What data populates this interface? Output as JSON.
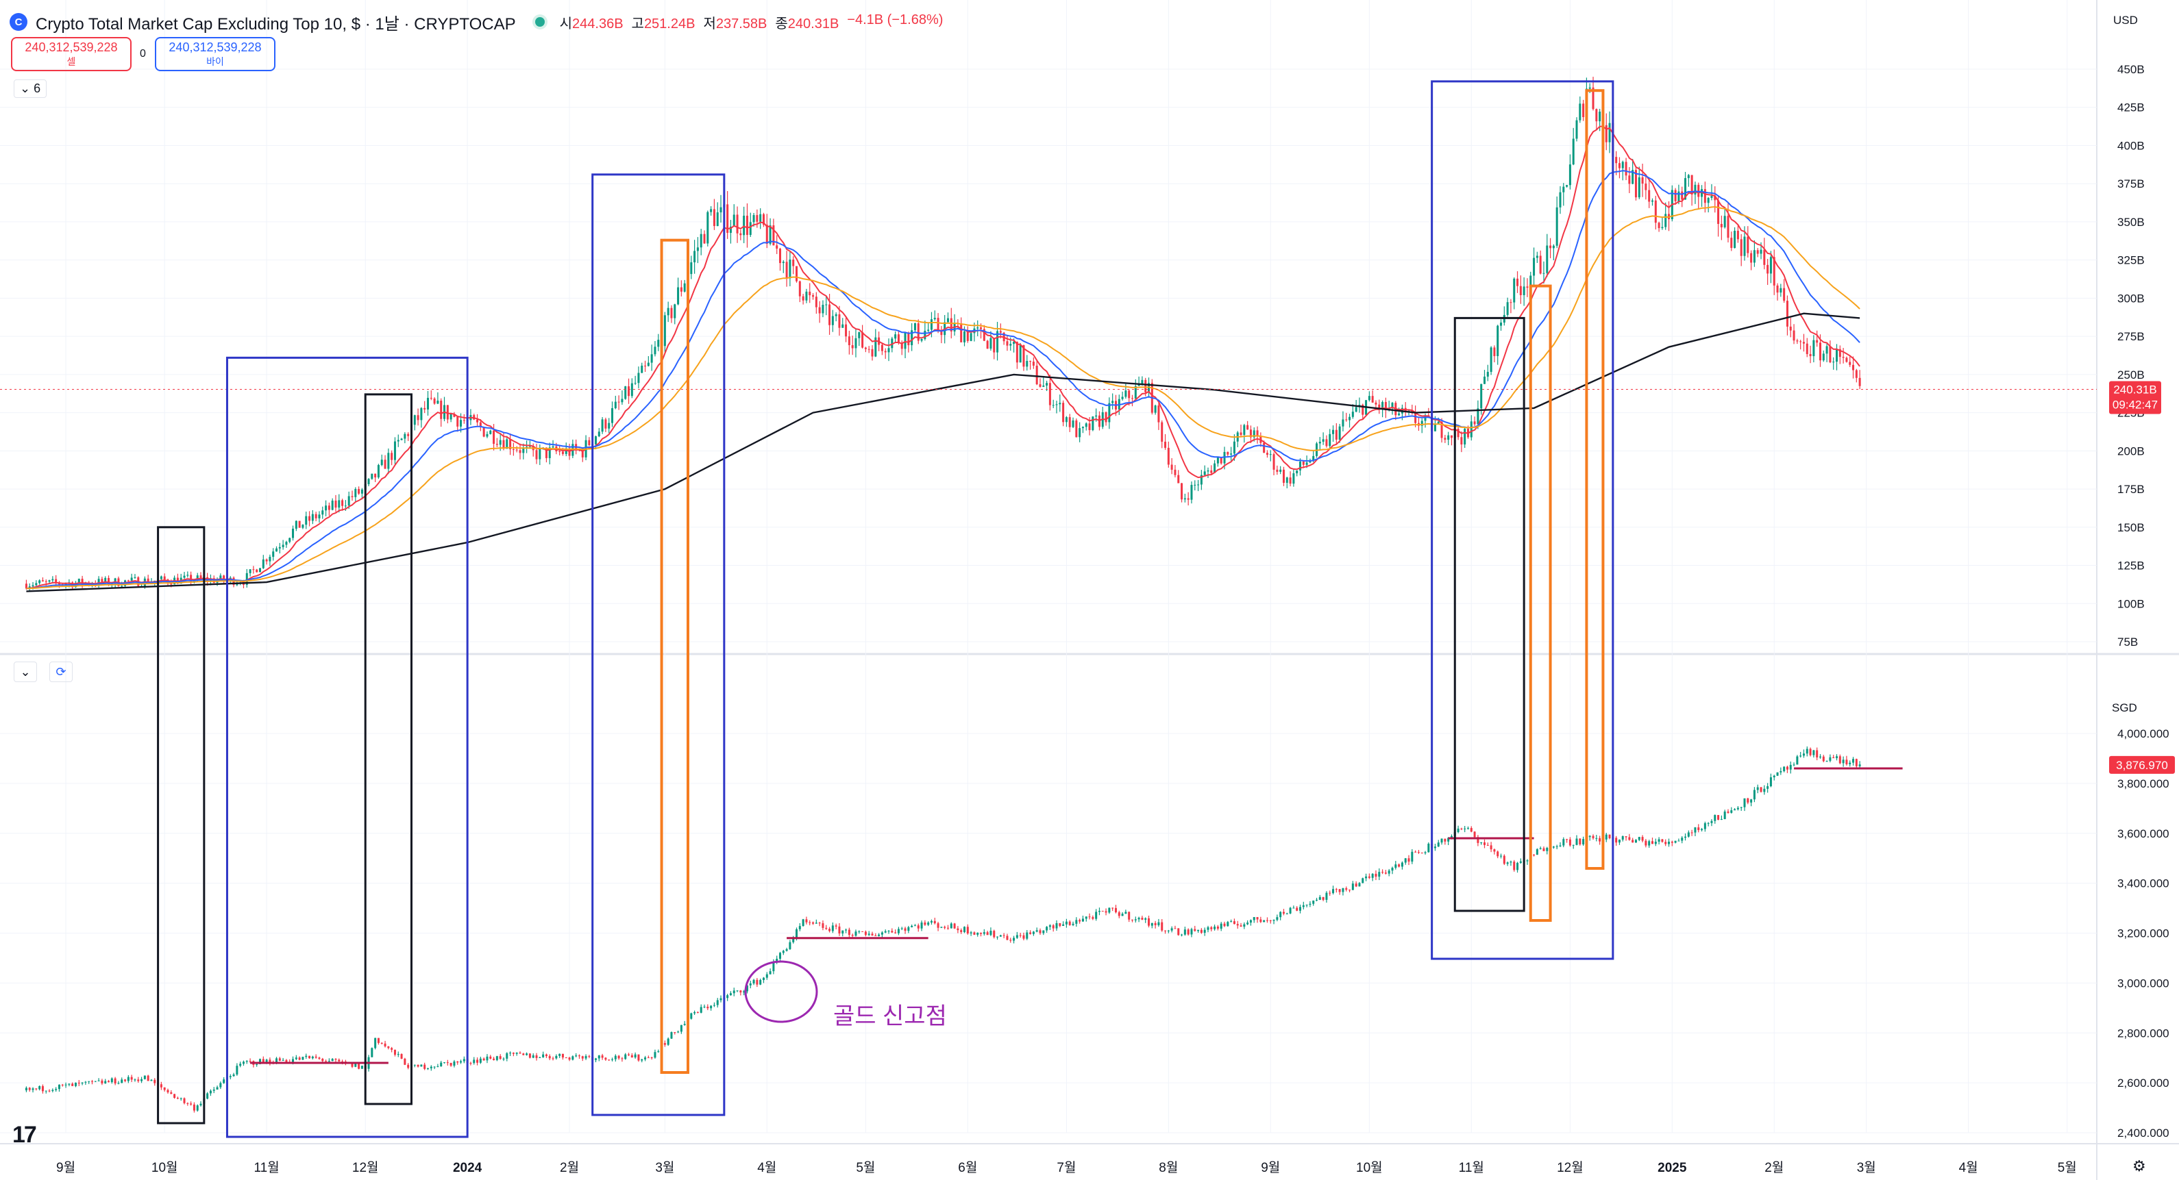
{
  "header": {
    "logo_glyph": "C",
    "title": "Crypto Total Market Cap Excluding Top 10, $ · 1날 · CRYPTOCAP",
    "open_label": "시",
    "open_value": "244.36B",
    "high_label": "고",
    "high_value": "251.24B",
    "low_label": "저",
    "low_value": "237.58B",
    "close_label": "종",
    "close_value": "240.31B",
    "change_value": "−4.1B (−1.68%)",
    "status_color": "#22ab94"
  },
  "trade": {
    "sell_price": "240,312,539,228",
    "sell_label": "셀",
    "spread": "0",
    "buy_price": "240,312,539,228",
    "buy_label": "바이"
  },
  "indicator_toggle": "6",
  "pane2_collapse": "⌄",
  "pane2_refresh": "⟳",
  "currency_top": "USD",
  "currency_bottom": "SGD",
  "annotation": "골드 신고점",
  "tv_logo": "17",
  "settings_glyph": "⚙",
  "chart_data": [
    {
      "type": "candlestick",
      "pane": "top",
      "currency": "USD",
      "y_axis_labels": [
        "450B",
        "425B",
        "400B",
        "375B",
        "350B",
        "325B",
        "300B",
        "275B",
        "250B",
        "225B",
        "200B",
        "175B",
        "150B",
        "125B",
        "100B",
        "75B"
      ],
      "ylim": [
        75,
        450
      ],
      "last_price_label": "240.31B",
      "countdown_label": "09:42:47",
      "last_price": 240.31,
      "series": [
        {
          "name": "",
          "color": "#f23645",
          "role": "ma_short"
        },
        {
          "name": "",
          "color": "#2962ff",
          "role": "ma_mid"
        },
        {
          "name": "",
          "color": "#f7a21b",
          "role": "ma_long"
        },
        {
          "name": "",
          "color": "#131722",
          "role": "ma_200"
        }
      ],
      "key_points": [
        {
          "date": "2023-08-20",
          "value": 113
        },
        {
          "date": "2023-09-15",
          "value": 114
        },
        {
          "date": "2023-10-10",
          "value": 116
        },
        {
          "date": "2023-10-25",
          "value": 115
        },
        {
          "date": "2023-11-10",
          "value": 150
        },
        {
          "date": "2023-12-01",
          "value": 175
        },
        {
          "date": "2023-12-20",
          "value": 230
        },
        {
          "date": "2024-01-05",
          "value": 215
        },
        {
          "date": "2024-01-20",
          "value": 198
        },
        {
          "date": "2024-02-05",
          "value": 200
        },
        {
          "date": "2024-02-25",
          "value": 255
        },
        {
          "date": "2024-03-15",
          "value": 355
        },
        {
          "date": "2024-03-31",
          "value": 345
        },
        {
          "date": "2024-04-15",
          "value": 295
        },
        {
          "date": "2024-05-01",
          "value": 268
        },
        {
          "date": "2024-05-25",
          "value": 282
        },
        {
          "date": "2024-06-15",
          "value": 268
        },
        {
          "date": "2024-07-05",
          "value": 210
        },
        {
          "date": "2024-07-25",
          "value": 245
        },
        {
          "date": "2024-08-05",
          "value": 168
        },
        {
          "date": "2024-08-25",
          "value": 215
        },
        {
          "date": "2024-09-06",
          "value": 180
        },
        {
          "date": "2024-09-30",
          "value": 232
        },
        {
          "date": "2024-10-15",
          "value": 220
        },
        {
          "date": "2024-10-31",
          "value": 208
        },
        {
          "date": "2024-11-12",
          "value": 300
        },
        {
          "date": "2024-11-25",
          "value": 330
        },
        {
          "date": "2024-12-06",
          "value": 440
        },
        {
          "date": "2024-12-15",
          "value": 395
        },
        {
          "date": "2024-12-28",
          "value": 350
        },
        {
          "date": "2025-01-06",
          "value": 375
        },
        {
          "date": "2025-01-20",
          "value": 340
        },
        {
          "date": "2025-01-31",
          "value": 320
        },
        {
          "date": "2025-02-07",
          "value": 270
        },
        {
          "date": "2025-02-20",
          "value": 262
        },
        {
          "date": "2025-02-27",
          "value": 240.31
        }
      ],
      "ma200_points": [
        {
          "date": "2023-08-20",
          "value": 108
        },
        {
          "date": "2023-11-01",
          "value": 114
        },
        {
          "date": "2024-01-01",
          "value": 140
        },
        {
          "date": "2024-03-01",
          "value": 175
        },
        {
          "date": "2024-04-15",
          "value": 225
        },
        {
          "date": "2024-06-15",
          "value": 250
        },
        {
          "date": "2024-08-15",
          "value": 240
        },
        {
          "date": "2024-10-15",
          "value": 225
        },
        {
          "date": "2024-11-20",
          "value": 228
        },
        {
          "date": "2024-12-31",
          "value": 268
        },
        {
          "date": "2025-02-10",
          "value": 290
        },
        {
          "date": "2025-02-27",
          "value": 287
        }
      ]
    },
    {
      "type": "candlestick",
      "pane": "bottom",
      "currency": "SGD",
      "y_axis_labels": [
        "4,000.000",
        "3,800.000",
        "3,600.000",
        "3,400.000",
        "3,200.000",
        "3,000.000",
        "2,800.000",
        "2,600.000",
        "2,400.000"
      ],
      "ylim": [
        2400,
        4000
      ],
      "last_price_label": "3,876.970",
      "last_price": 3876.97,
      "key_points": [
        {
          "date": "2023-08-20",
          "value": 2570
        },
        {
          "date": "2023-09-25",
          "value": 2620
        },
        {
          "date": "2023-10-10",
          "value": 2500
        },
        {
          "date": "2023-10-25",
          "value": 2680
        },
        {
          "date": "2023-11-15",
          "value": 2700
        },
        {
          "date": "2023-12-01",
          "value": 2660
        },
        {
          "date": "2023-12-04",
          "value": 2780
        },
        {
          "date": "2023-12-15",
          "value": 2660
        },
        {
          "date": "2024-01-15",
          "value": 2710
        },
        {
          "date": "2024-02-25",
          "value": 2700
        },
        {
          "date": "2024-03-10",
          "value": 2880
        },
        {
          "date": "2024-03-31",
          "value": 3020
        },
        {
          "date": "2024-04-12",
          "value": 3240
        },
        {
          "date": "2024-05-01",
          "value": 3190
        },
        {
          "date": "2024-05-20",
          "value": 3240
        },
        {
          "date": "2024-06-15",
          "value": 3180
        },
        {
          "date": "2024-07-15",
          "value": 3290
        },
        {
          "date": "2024-08-05",
          "value": 3200
        },
        {
          "date": "2024-09-01",
          "value": 3260
        },
        {
          "date": "2024-10-01",
          "value": 3420
        },
        {
          "date": "2024-10-30",
          "value": 3620
        },
        {
          "date": "2024-11-14",
          "value": 3460
        },
        {
          "date": "2024-11-25",
          "value": 3560
        },
        {
          "date": "2024-12-12",
          "value": 3580
        },
        {
          "date": "2024-12-31",
          "value": 3560
        },
        {
          "date": "2025-01-20",
          "value": 3700
        },
        {
          "date": "2025-02-11",
          "value": 3920
        },
        {
          "date": "2025-02-27",
          "value": 3876.97
        }
      ],
      "support_lines": [
        {
          "from": "2023-10-27",
          "to": "2023-12-08",
          "value": 2680
        },
        {
          "from": "2024-04-07",
          "to": "2024-05-20",
          "value": 3180
        },
        {
          "from": "2024-10-25",
          "to": "2024-11-20",
          "value": 3580
        },
        {
          "from": "2025-02-07",
          "to": "2025-03-12",
          "value": 3860
        }
      ]
    }
  ],
  "x_axis_labels": [
    "9월",
    "10월",
    "11월",
    "12월",
    "2024",
    "2월",
    "3월",
    "4월",
    "5월",
    "6월",
    "7월",
    "8월",
    "9월",
    "10월",
    "11월",
    "12월",
    "2025",
    "2월",
    "3월",
    "4월",
    "5월"
  ],
  "highlight_boxes": [
    {
      "color": "#131722",
      "from": "2023-09-29",
      "to": "2023-10-13",
      "top_pane_value": 150
    },
    {
      "color": "#131722",
      "from": "2023-12-01",
      "to": "2023-12-15",
      "top_pane_value": 237
    },
    {
      "color": "#131722",
      "from": "2024-10-27",
      "to": "2024-11-17",
      "top_pane_value": 287
    },
    {
      "color": "#2e36c7",
      "from": "2023-10-20",
      "to": "2024-01-01",
      "top_pane_value": 261
    },
    {
      "color": "#2e36c7",
      "from": "2024-02-08",
      "to": "2024-03-19",
      "top_pane_value": 381
    },
    {
      "color": "#2e36c7",
      "from": "2024-10-20",
      "to": "2024-12-14",
      "top_pane_value": 442
    },
    {
      "color": "#f57c1f",
      "from": "2024-02-29",
      "to": "2024-03-08",
      "top_pane_value": 338
    },
    {
      "color": "#f57c1f",
      "from": "2024-11-19",
      "to": "2024-11-25",
      "top_pane_value": 308
    },
    {
      "color": "#f57c1f",
      "from": "2024-12-06",
      "to": "2024-12-11",
      "top_pane_value": 436
    }
  ],
  "colors": {
    "up": "#089981",
    "down": "#f23645",
    "grid": "#f0f3fa",
    "annotation": "#9c27b0",
    "support": "#b2164b"
  }
}
